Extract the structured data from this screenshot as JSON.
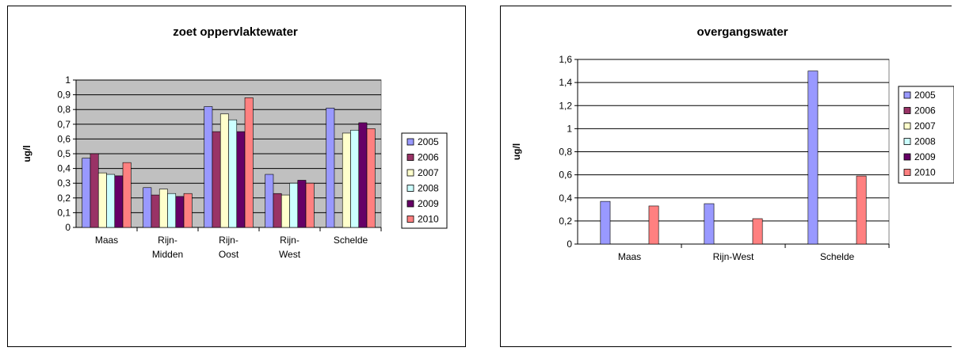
{
  "chart_data": [
    {
      "type": "bar",
      "title": "zoet oppervlaktewater",
      "ylabel": "ug/l",
      "xlabel": "",
      "ylim": [
        0,
        1
      ],
      "yticks": [
        "0",
        "0,1",
        "0,2",
        "0,3",
        "0,4",
        "0,5",
        "0,6",
        "0,7",
        "0,8",
        "0,9",
        "1"
      ],
      "categories": [
        "Maas",
        "Rijn-\nMidden",
        "Rijn-\nOost",
        "Rijn-\nWest",
        "Schelde"
      ],
      "grid": true,
      "plot_background": "#c0c0c0",
      "legend_position": "right",
      "series": [
        {
          "name": "2005",
          "color": "#9999ff",
          "values": [
            0.47,
            0.27,
            0.82,
            0.36,
            0.81
          ]
        },
        {
          "name": "2006",
          "color": "#993366",
          "values": [
            0.5,
            0.22,
            0.65,
            0.23,
            null
          ]
        },
        {
          "name": "2007",
          "color": "#ffffcc",
          "values": [
            0.37,
            0.26,
            0.77,
            0.22,
            0.64
          ]
        },
        {
          "name": "2008",
          "color": "#ccffff",
          "values": [
            0.36,
            0.23,
            0.73,
            0.3,
            0.66
          ]
        },
        {
          "name": "2009",
          "color": "#660066",
          "values": [
            0.35,
            0.21,
            0.65,
            0.32,
            0.71
          ]
        },
        {
          "name": "2010",
          "color": "#ff8080",
          "values": [
            0.44,
            0.23,
            0.88,
            0.3,
            0.67
          ]
        }
      ]
    },
    {
      "type": "bar",
      "title": "overgangswater",
      "ylabel": "ug/l",
      "xlabel": "",
      "ylim": [
        0,
        1.6
      ],
      "yticks": [
        "0",
        "0,2",
        "0,4",
        "0,6",
        "0,8",
        "1",
        "1,2",
        "1,4",
        "1,6"
      ],
      "categories": [
        "Maas",
        "Rijn-West",
        "Schelde"
      ],
      "grid": true,
      "plot_background": "#ffffff",
      "legend_position": "right",
      "series": [
        {
          "name": "2005",
          "color": "#9999ff",
          "values": [
            0.37,
            0.35,
            1.5
          ]
        },
        {
          "name": "2006",
          "color": "#993366",
          "values": [
            null,
            null,
            null
          ]
        },
        {
          "name": "2007",
          "color": "#ffffcc",
          "values": [
            null,
            null,
            null
          ]
        },
        {
          "name": "2008",
          "color": "#ccffff",
          "values": [
            null,
            null,
            null
          ]
        },
        {
          "name": "2009",
          "color": "#660066",
          "values": [
            null,
            null,
            null
          ]
        },
        {
          "name": "2010",
          "color": "#ff8080",
          "values": [
            0.33,
            0.22,
            0.59
          ]
        }
      ]
    }
  ]
}
